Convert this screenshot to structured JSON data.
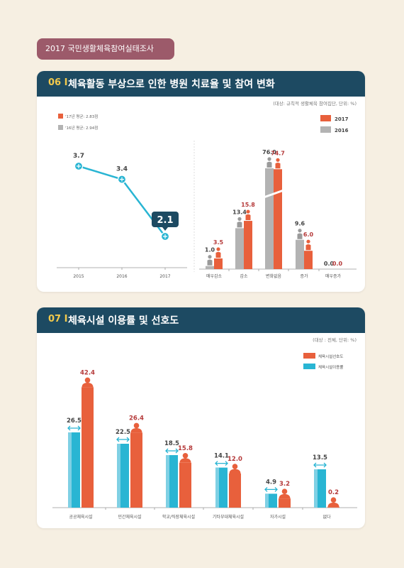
{
  "header_tag": "2017 국민생활체육참여실태조사",
  "section06": {
    "num": "06 I",
    "title": "체육활동 부상으로 인한 병원 치료율 및 참여 변화",
    "note": "(대상: 규칙적 생활체육 참여집단, 단위: %)"
  },
  "section07": {
    "num": "07 I",
    "title": "체육시설 이용률 및 선호도",
    "note": "(대상 : 전체, 단위: %)"
  },
  "colors": {
    "orange": "#e8603c",
    "gray": "#b3b3b3",
    "teal": "#29b5d3",
    "light_teal": "#7fd0e4",
    "navy": "#1d4a62",
    "value_red": "#b53a3a"
  },
  "chart_data": [
    {
      "type": "line",
      "legend": [
        "'17년 평균: 2.83점",
        "'16년 평균: 2.94점"
      ],
      "categories": [
        "2015",
        "2016",
        "2017"
      ],
      "values": [
        3.7,
        3.4,
        2.1
      ],
      "highlight_label": "2.1"
    },
    {
      "type": "bar",
      "categories": [
        "매우감소",
        "감소",
        "변화없음",
        "증가",
        "매우증가"
      ],
      "series": [
        {
          "name": "2017",
          "values": [
            3.5,
            15.8,
            74.7,
            6.0,
            0.0
          ]
        },
        {
          "name": "2016",
          "values": [
            1.0,
            13.4,
            76.0,
            9.6,
            0.0
          ]
        }
      ],
      "value_labels_2017": [
        "3.5",
        "15.8",
        "74.7",
        "6.0",
        "0.0"
      ],
      "value_labels_2016": [
        "1.0",
        "13.4",
        "76.0",
        "9.6",
        "0.0"
      ],
      "legend_position": "top-right"
    },
    {
      "type": "bar",
      "categories": [
        "공공체육시설",
        "민간체육시설",
        "학교/직장체육시설",
        "기타부대체육시설",
        "자가시설",
        "없다"
      ],
      "series": [
        {
          "name": "체육시설선호도",
          "values": [
            42.4,
            26.4,
            15.8,
            12.0,
            3.2,
            0.2
          ]
        },
        {
          "name": "체육시설이용률",
          "values": [
            26.5,
            22.5,
            18.5,
            14.1,
            4.9,
            13.5
          ]
        }
      ],
      "value_labels_pref": [
        "42.4",
        "26.4",
        "15.8",
        "12.0",
        "3.2",
        "0.2"
      ],
      "value_labels_use": [
        "26.5",
        "22.5",
        "18.5",
        "14.1",
        "4.9",
        "13.5"
      ],
      "legend_position": "top-right"
    }
  ]
}
